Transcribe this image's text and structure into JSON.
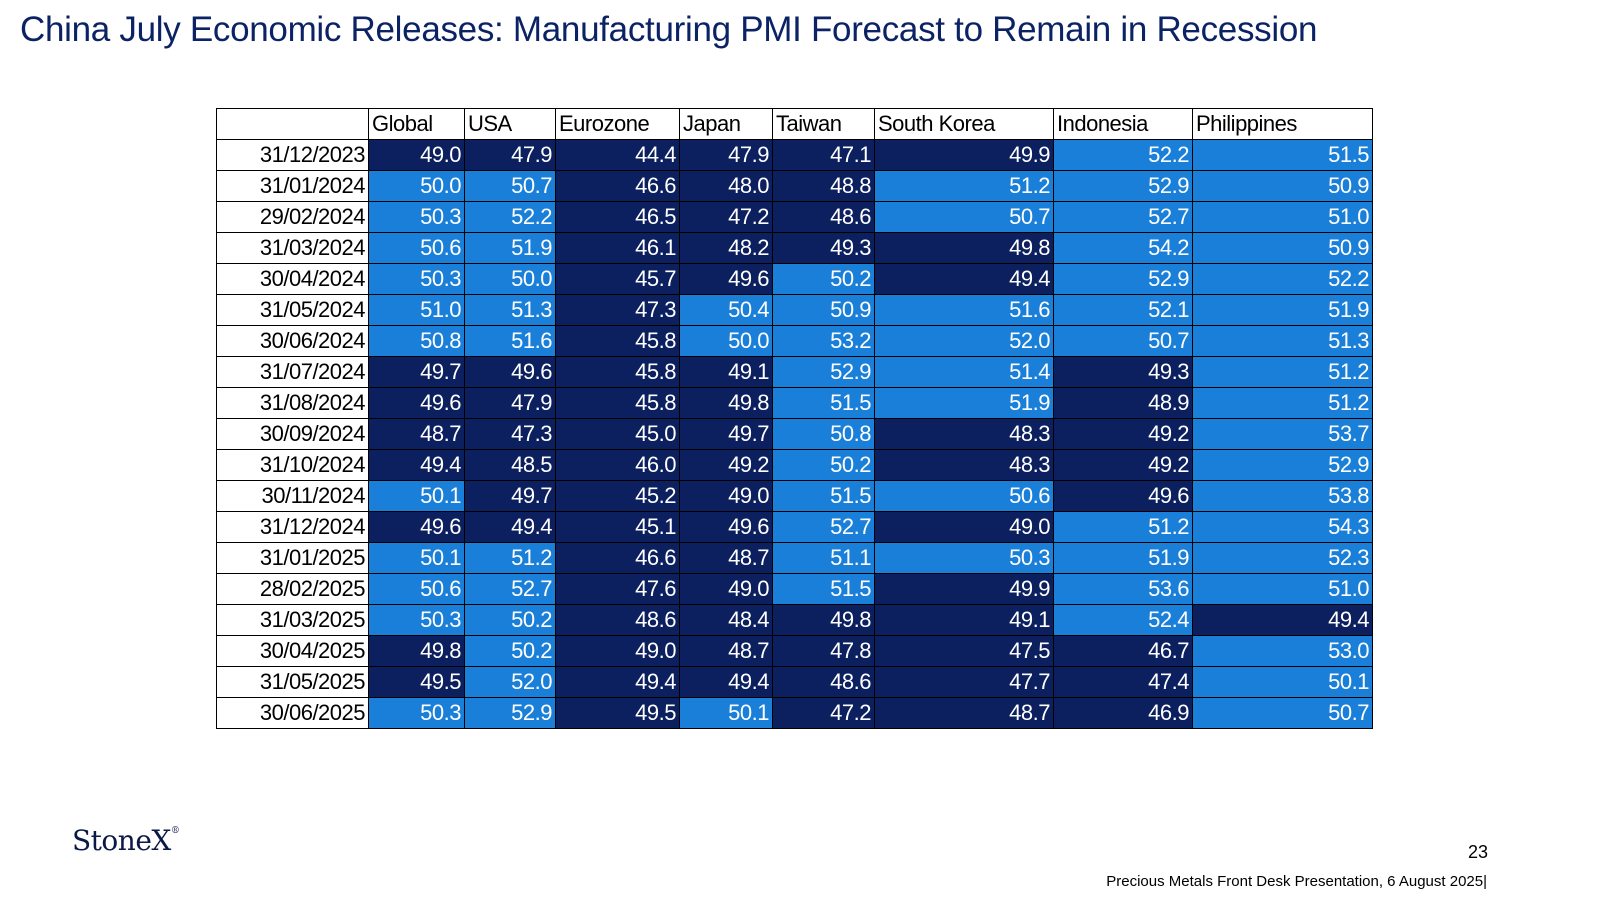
{
  "title": "China July Economic Releases: Manufacturing PMI Forecast to Remain in Recession",
  "table": {
    "corner": "",
    "columns": [
      "Global",
      "USA",
      "Eurozone",
      "Japan",
      "Taiwan",
      "South Korea",
      "Indonesia",
      "Philippines"
    ],
    "rows": [
      {
        "date": "31/12/2023",
        "values": [
          "49.0",
          "47.9",
          "44.4",
          "47.9",
          "47.1",
          "49.9",
          "52.2",
          "51.5"
        ]
      },
      {
        "date": "31/01/2024",
        "values": [
          "50.0",
          "50.7",
          "46.6",
          "48.0",
          "48.8",
          "51.2",
          "52.9",
          "50.9"
        ]
      },
      {
        "date": "29/02/2024",
        "values": [
          "50.3",
          "52.2",
          "46.5",
          "47.2",
          "48.6",
          "50.7",
          "52.7",
          "51.0"
        ]
      },
      {
        "date": "31/03/2024",
        "values": [
          "50.6",
          "51.9",
          "46.1",
          "48.2",
          "49.3",
          "49.8",
          "54.2",
          "50.9"
        ]
      },
      {
        "date": "30/04/2024",
        "values": [
          "50.3",
          "50.0",
          "45.7",
          "49.6",
          "50.2",
          "49.4",
          "52.9",
          "52.2"
        ]
      },
      {
        "date": "31/05/2024",
        "values": [
          "51.0",
          "51.3",
          "47.3",
          "50.4",
          "50.9",
          "51.6",
          "52.1",
          "51.9"
        ]
      },
      {
        "date": "30/06/2024",
        "values": [
          "50.8",
          "51.6",
          "45.8",
          "50.0",
          "53.2",
          "52.0",
          "50.7",
          "51.3"
        ]
      },
      {
        "date": "31/07/2024",
        "values": [
          "49.7",
          "49.6",
          "45.8",
          "49.1",
          "52.9",
          "51.4",
          "49.3",
          "51.2"
        ]
      },
      {
        "date": "31/08/2024",
        "values": [
          "49.6",
          "47.9",
          "45.8",
          "49.8",
          "51.5",
          "51.9",
          "48.9",
          "51.2"
        ]
      },
      {
        "date": "30/09/2024",
        "values": [
          "48.7",
          "47.3",
          "45.0",
          "49.7",
          "50.8",
          "48.3",
          "49.2",
          "53.7"
        ]
      },
      {
        "date": "31/10/2024",
        "values": [
          "49.4",
          "48.5",
          "46.0",
          "49.2",
          "50.2",
          "48.3",
          "49.2",
          "52.9"
        ]
      },
      {
        "date": "30/11/2024",
        "values": [
          "50.1",
          "49.7",
          "45.2",
          "49.0",
          "51.5",
          "50.6",
          "49.6",
          "53.8"
        ]
      },
      {
        "date": "31/12/2024",
        "values": [
          "49.6",
          "49.4",
          "45.1",
          "49.6",
          "52.7",
          "49.0",
          "51.2",
          "54.3"
        ]
      },
      {
        "date": "31/01/2025",
        "values": [
          "50.1",
          "51.2",
          "46.6",
          "48.7",
          "51.1",
          "50.3",
          "51.9",
          "52.3"
        ]
      },
      {
        "date": "28/02/2025",
        "values": [
          "50.6",
          "52.7",
          "47.6",
          "49.0",
          "51.5",
          "49.9",
          "53.6",
          "51.0"
        ]
      },
      {
        "date": "31/03/2025",
        "values": [
          "50.3",
          "50.2",
          "48.6",
          "48.4",
          "49.8",
          "49.1",
          "52.4",
          "49.4"
        ]
      },
      {
        "date": "30/04/2025",
        "values": [
          "49.8",
          "50.2",
          "49.0",
          "48.7",
          "47.8",
          "47.5",
          "46.7",
          "53.0"
        ]
      },
      {
        "date": "31/05/2025",
        "values": [
          "49.5",
          "52.0",
          "49.4",
          "49.4",
          "48.6",
          "47.7",
          "47.4",
          "50.1"
        ]
      },
      {
        "date": "30/06/2025",
        "values": [
          "50.3",
          "52.9",
          "49.5",
          "50.1",
          "47.2",
          "48.7",
          "46.9",
          "50.7"
        ]
      }
    ]
  },
  "colors": {
    "below_50": "#0c1f5e",
    "at_or_above_50": "#1a7fd8",
    "title": "#0b2265"
  },
  "threshold": 50,
  "logo": {
    "text": "StoneX",
    "mark": "®"
  },
  "page_number": "23",
  "footer": "Precious Metals Front Desk Presentation, 6 August 2025|"
}
